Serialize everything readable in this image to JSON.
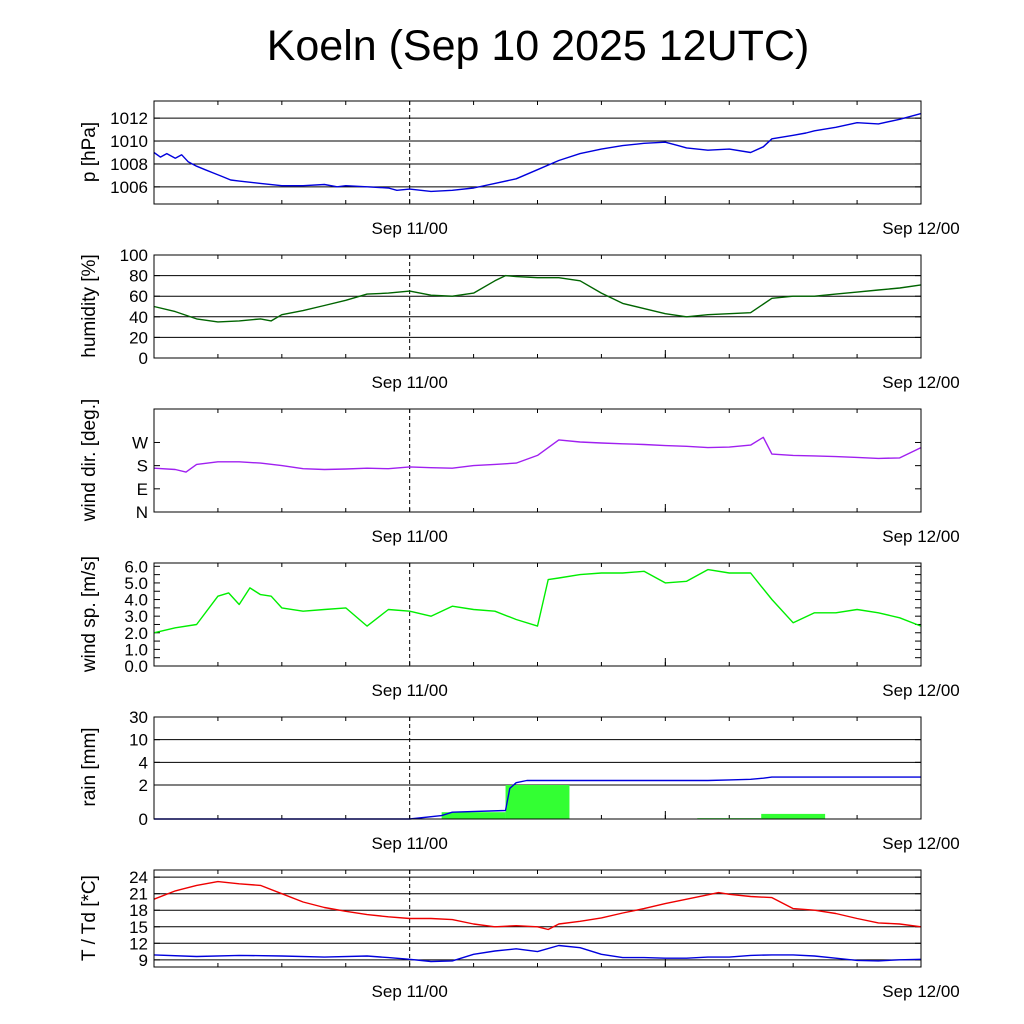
{
  "title": "Koeln (Sep 10 2025 12UTC)",
  "x_tick_labels": [
    "Sep 11/00",
    "Sep 12/00"
  ],
  "colors": {
    "pressure": "#0000dd",
    "humidity": "#006400",
    "wind_dir": "#a020f0",
    "wind_speed": "#00ee00",
    "rain_bar": "#33ff33",
    "rain_sum": "#0000dd",
    "temperature": "#ee0000",
    "dewpoint": "#0000dd"
  },
  "chart_data": [
    {
      "type": "line",
      "id": "pressure",
      "ylabel": "p [hPa]",
      "x_unit": "hours since Sep 10 12UTC",
      "xlim": [
        0,
        36
      ],
      "ylim": [
        1004.5,
        1013.5
      ],
      "yticks": [
        1006,
        1008,
        1010,
        1012
      ],
      "ytick_labels": [
        "1006",
        "1008",
        "1010",
        "1012"
      ],
      "series": [
        {
          "name": "pressure",
          "x": [
            0,
            0.3,
            0.6,
            1,
            1.3,
            1.6,
            2,
            2.4,
            2.8,
            3.2,
            3.6,
            4,
            5,
            6,
            7,
            8,
            8.6,
            9,
            10,
            11,
            11.4,
            12,
            13,
            14,
            15,
            16,
            17,
            18,
            19,
            20,
            21,
            22,
            23,
            24,
            24.6,
            25,
            26,
            27,
            28,
            28.6,
            29,
            30,
            30.6,
            31,
            32,
            33,
            34,
            35,
            36
          ],
          "y": [
            1009,
            1008.6,
            1008.9,
            1008.5,
            1008.8,
            1008.2,
            1007.8,
            1007.5,
            1007.2,
            1006.9,
            1006.6,
            1006.5,
            1006.3,
            1006.1,
            1006.1,
            1006.2,
            1006.0,
            1006.1,
            1006.0,
            1005.9,
            1005.7,
            1005.8,
            1005.6,
            1005.7,
            1005.9,
            1006.3,
            1006.7,
            1007.5,
            1008.3,
            1008.9,
            1009.3,
            1009.6,
            1009.8,
            1009.9,
            1009.6,
            1009.4,
            1009.2,
            1009.3,
            1009.0,
            1009.5,
            1010.2,
            1010.5,
            1010.7,
            1010.9,
            1011.2,
            1011.6,
            1011.5,
            1011.9,
            1012.4
          ]
        }
      ]
    },
    {
      "type": "line",
      "id": "humidity",
      "ylabel": "humidity [%]",
      "xlim": [
        0,
        36
      ],
      "ylim": [
        0,
        100
      ],
      "yticks": [
        0,
        20,
        40,
        60,
        80,
        100
      ],
      "ytick_labels": [
        "0",
        "20",
        "40",
        "60",
        "80",
        "100"
      ],
      "series": [
        {
          "name": "humidity",
          "x": [
            0,
            1,
            2,
            3,
            4,
            5,
            5.5,
            6,
            7,
            8,
            9,
            10,
            11,
            12,
            13,
            14,
            15,
            16,
            16.5,
            17,
            18,
            19,
            20,
            21,
            22,
            23,
            24,
            25,
            26,
            27,
            28,
            29,
            30,
            31,
            32,
            33,
            34,
            35,
            36
          ],
          "y": [
            50,
            45,
            38,
            35,
            36,
            38,
            36,
            42,
            46,
            51,
            56,
            62,
            63,
            65,
            61,
            60,
            63,
            75,
            80,
            79,
            78,
            78,
            75,
            63,
            53,
            48,
            43,
            40,
            42,
            43,
            44,
            58,
            60,
            60,
            62,
            64,
            66,
            68,
            71
          ]
        }
      ]
    },
    {
      "type": "line",
      "id": "wind_direction",
      "ylabel": "wind dir. [deg.]",
      "xlim": [
        0,
        36
      ],
      "ylim": [
        0,
        400
      ],
      "yticks": [
        0,
        90,
        180,
        270
      ],
      "ytick_labels": [
        "N",
        "E",
        "S",
        "W"
      ],
      "series": [
        {
          "name": "wind direction",
          "x": [
            0,
            1,
            1.5,
            2,
            3,
            4,
            5,
            6,
            7,
            8,
            9,
            10,
            11,
            12,
            13,
            14,
            15,
            16,
            17,
            18,
            19,
            20,
            21,
            22,
            23,
            24,
            25,
            26,
            27,
            28,
            28.6,
            29,
            30,
            31,
            32,
            33,
            34,
            35,
            36
          ],
          "y": [
            170,
            165,
            155,
            185,
            195,
            195,
            190,
            180,
            168,
            165,
            167,
            170,
            168,
            175,
            172,
            170,
            180,
            185,
            190,
            220,
            280,
            272,
            268,
            265,
            262,
            258,
            255,
            250,
            252,
            260,
            290,
            225,
            220,
            218,
            215,
            212,
            208,
            210,
            250
          ]
        }
      ]
    },
    {
      "type": "line",
      "id": "wind_speed",
      "ylabel": "wind sp. [m/s]",
      "xlim": [
        0,
        36
      ],
      "ylim": [
        0,
        6.2
      ],
      "yticks": [
        0,
        0.5,
        1,
        1.5,
        2,
        2.5,
        3,
        3.5,
        4,
        4.5,
        5,
        5.5,
        6
      ],
      "ytick_labels": [
        "0.0",
        "1.0",
        "2.0",
        "3.0",
        "4.0",
        "5.0",
        "6.0"
      ],
      "series": [
        {
          "name": "wind speed",
          "x": [
            0,
            1,
            2,
            3,
            3.5,
            4,
            4.5,
            5,
            5.5,
            6,
            7,
            8,
            9,
            10,
            11,
            12,
            13,
            14,
            15,
            16,
            17,
            18,
            18.5,
            19,
            20,
            21,
            22,
            23,
            24,
            25,
            26,
            27,
            28,
            28.5,
            29,
            30,
            31,
            32,
            33,
            34,
            35,
            36
          ],
          "y": [
            2.0,
            2.3,
            2.5,
            4.2,
            4.4,
            3.7,
            4.7,
            4.3,
            4.2,
            3.5,
            3.3,
            3.4,
            3.5,
            2.4,
            3.4,
            3.3,
            3.0,
            3.6,
            3.4,
            3.3,
            2.8,
            2.4,
            5.2,
            5.3,
            5.5,
            5.6,
            5.6,
            5.7,
            5.0,
            5.1,
            5.8,
            5.6,
            5.6,
            4.8,
            4.0,
            2.6,
            3.2,
            3.2,
            3.4,
            3.2,
            2.9,
            2.4
          ]
        }
      ]
    },
    {
      "type": "bar+line",
      "id": "rain",
      "ylabel": "rain [mm]",
      "xlim": [
        0,
        36
      ],
      "ylim_index": [
        0,
        4.5
      ],
      "yticks": [
        0,
        2,
        4,
        10,
        30
      ],
      "ytick_labels": [
        "0",
        "2",
        "4",
        "10",
        "30"
      ],
      "bars": [
        {
          "x0": 13.5,
          "x1": 16.5,
          "value": 0.4
        },
        {
          "x0": 16.5,
          "x1": 19.5,
          "value": 2.0
        },
        {
          "x0": 25.5,
          "x1": 28.5,
          "value": 0.05
        },
        {
          "x0": 28.5,
          "x1": 31.5,
          "value": 0.3
        }
      ],
      "series": [
        {
          "name": "accumulated rain",
          "x": [
            0,
            12,
            13.5,
            14,
            16.5,
            16.7,
            17,
            17.5,
            18,
            22,
            26,
            27,
            28,
            28.6,
            29,
            36
          ],
          "y": [
            0,
            0,
            0.2,
            0.4,
            0.5,
            1.8,
            2.2,
            2.4,
            2.4,
            2.4,
            2.4,
            2.45,
            2.5,
            2.6,
            2.7,
            2.7
          ]
        }
      ]
    },
    {
      "type": "line",
      "id": "temperature",
      "ylabel": "T / Td [*C]",
      "xlim": [
        0,
        36
      ],
      "ylim": [
        7.7,
        25.3
      ],
      "yticks": [
        9,
        12,
        15,
        18,
        21,
        24
      ],
      "ytick_labels": [
        "9",
        "12",
        "15",
        "18",
        "21",
        "24"
      ],
      "series": [
        {
          "name": "temperature",
          "x": [
            0,
            1,
            2,
            3,
            4,
            5,
            6,
            7,
            8,
            9,
            10,
            11,
            12,
            13,
            14,
            15,
            16,
            17,
            18,
            18.5,
            19,
            20,
            21,
            22,
            23,
            24,
            25,
            26,
            26.5,
            27,
            28,
            29,
            30,
            31,
            32,
            33,
            34,
            35,
            36
          ],
          "y": [
            20,
            21.5,
            22.5,
            23.2,
            22.8,
            22.5,
            21,
            19.5,
            18.5,
            17.8,
            17.2,
            16.8,
            16.5,
            16.5,
            16.3,
            15.5,
            15,
            15.2,
            15,
            14.5,
            15.5,
            16,
            16.6,
            17.5,
            18.3,
            19.2,
            20,
            20.8,
            21.2,
            20.9,
            20.5,
            20.3,
            18.3,
            18.0,
            17.4,
            16.5,
            15.7,
            15.5,
            15.0
          ]
        },
        {
          "name": "dewpoint",
          "x": [
            0,
            2,
            4,
            6,
            8,
            10,
            11,
            12,
            13,
            14,
            15,
            16,
            17,
            18,
            19,
            20,
            21,
            22,
            23,
            24,
            25,
            26,
            27,
            28,
            29,
            30,
            31,
            32,
            33,
            34,
            35,
            36
          ],
          "y": [
            9.9,
            9.6,
            9.8,
            9.7,
            9.5,
            9.7,
            9.4,
            9.1,
            8.7,
            8.8,
            10.0,
            10.6,
            11.0,
            10.5,
            11.6,
            11.2,
            10.0,
            9.4,
            9.4,
            9.3,
            9.3,
            9.5,
            9.5,
            9.8,
            9.9,
            9.9,
            9.7,
            9.3,
            8.9,
            8.8,
            9.0,
            9.1
          ]
        }
      ]
    }
  ]
}
